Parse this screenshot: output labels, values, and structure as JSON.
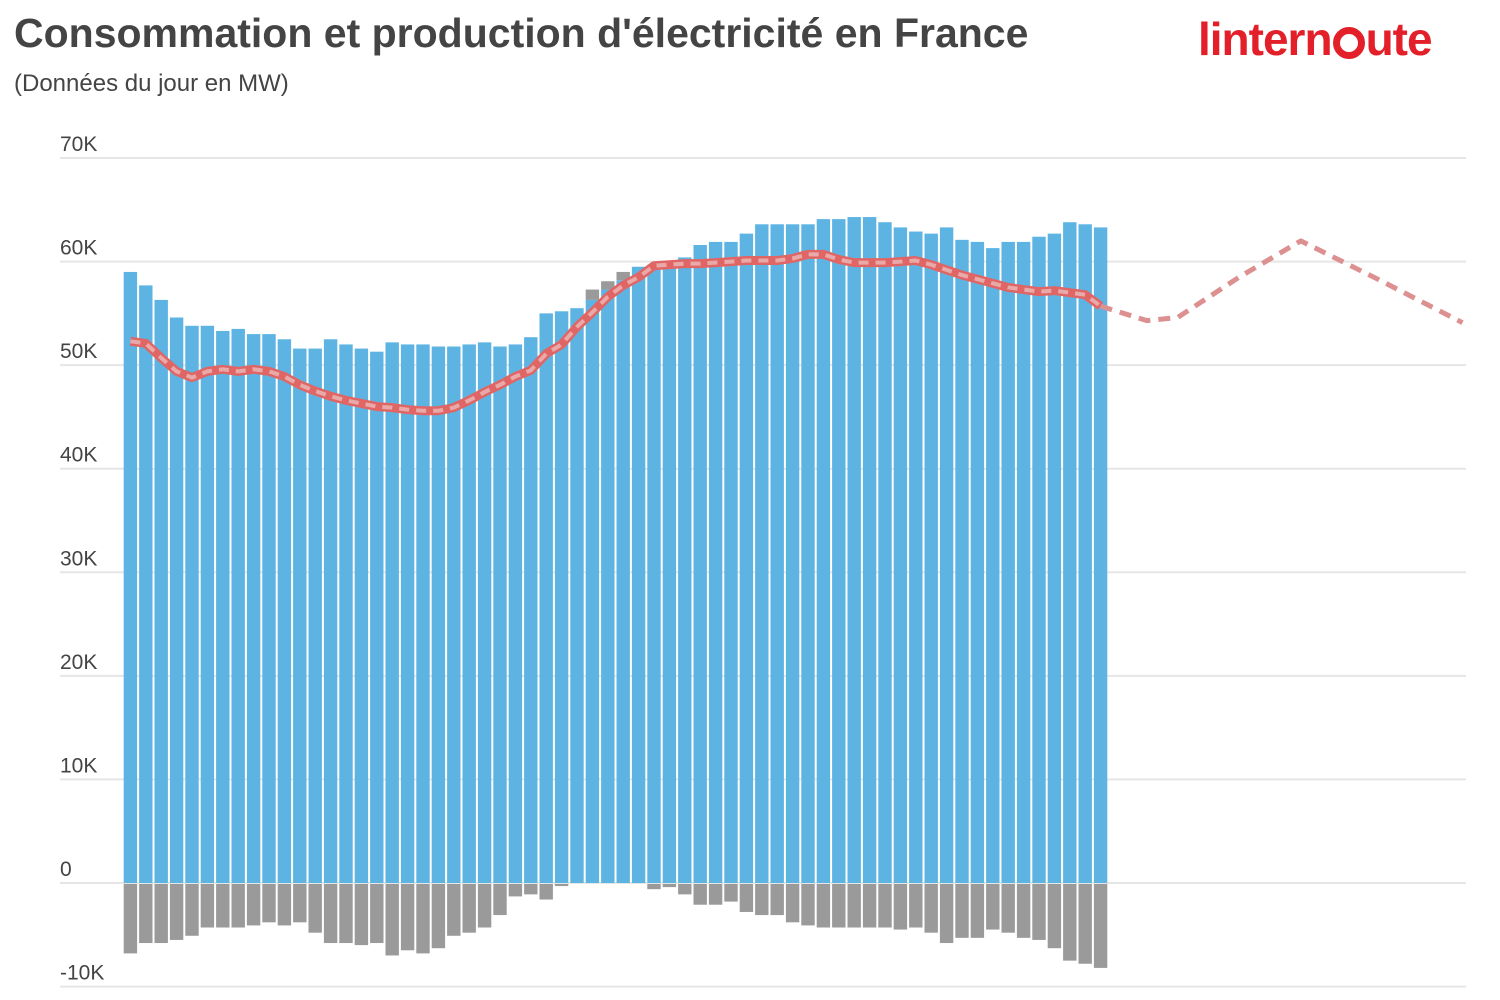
{
  "header": {
    "title": "Consommation et production d'électricité en France",
    "subtitle": "(Données du jour en MW)",
    "logo": "linternaute"
  },
  "colors": {
    "production": "#5db4e3",
    "exchanges": "#9a9a9a",
    "consumption": "#e06666",
    "consumption_dash": "#eaa9a9",
    "forecast": "#dc9090",
    "grid": "#e6e6e6",
    "logo": "#e3202a"
  },
  "chart_data": {
    "type": "bar",
    "title": "Consommation et production d'électricité en France",
    "subtitle": "(Données du jour en MW)",
    "xlabel": "",
    "ylabel": "",
    "ylim": [
      -10000,
      70000
    ],
    "xlim": [
      0.5,
      87.5
    ],
    "grid": true,
    "y_ticks": [
      -10000,
      0,
      10000,
      20000,
      30000,
      40000,
      50000,
      60000,
      70000
    ],
    "y_tick_labels": [
      "-10K",
      "0",
      "10K",
      "20K",
      "30K",
      "40K",
      "50K",
      "60K",
      "70K"
    ],
    "series": [
      {
        "type": "bar",
        "values": [
          59000,
          57700,
          56300,
          54600,
          53800,
          53800,
          53300,
          53500,
          53000,
          53000,
          52500,
          51600,
          51600,
          52500,
          52000,
          51600,
          51300,
          52200,
          52000,
          52000,
          51800,
          51800,
          52000,
          52200,
          51800,
          52000,
          52700,
          55000,
          55200,
          55500,
          56300,
          57300,
          58200,
          59500,
          59700,
          60000,
          60400,
          61600,
          61900,
          61900,
          62700,
          63600,
          63600,
          63600,
          63600,
          64100,
          64100,
          64300,
          64300,
          63800,
          63300,
          62900,
          62700,
          63300,
          62100,
          61900,
          61300,
          61900,
          61900,
          62400,
          62700,
          63800,
          63600,
          63300
        ]
      },
      {
        "type": "bar",
        "values": [
          -6700,
          -5700,
          -5700,
          -5400,
          -5000,
          -4200,
          -4200,
          -4200,
          -4000,
          -3700,
          -4000,
          -3700,
          -4700,
          -5700,
          -5700,
          -5900,
          -5700,
          -6900,
          -6400,
          -6700,
          -6200,
          -5000,
          -4700,
          -4200,
          -3000,
          -1200,
          -1000,
          -1500,
          -200,
          0,
          1000,
          800,
          800,
          0,
          -500,
          -300,
          -1000,
          -2000,
          -2000,
          -1700,
          -2700,
          -3000,
          -3000,
          -3700,
          -4000,
          -4200,
          -4200,
          -4200,
          -4200,
          -4200,
          -4400,
          -4200,
          -4700,
          -5700,
          -5200,
          -5200,
          -4400,
          -4700,
          -5200,
          -5400,
          -6200,
          -7400,
          -7700,
          -8100
        ]
      },
      {
        "type": "line",
        "values": [
          52300,
          52100,
          50700,
          49400,
          48800,
          49400,
          49600,
          49400,
          49600,
          49400,
          48900,
          48100,
          47500,
          47000,
          46600,
          46300,
          46000,
          45900,
          45700,
          45600,
          45600,
          45900,
          46600,
          47400,
          48100,
          48900,
          49500,
          51100,
          52000,
          53700,
          55100,
          56600,
          57700,
          58500,
          59600,
          59700,
          59800,
          59800,
          59900,
          60000,
          60100,
          60100,
          60100,
          60300,
          60700,
          60700,
          60200,
          59900,
          59900,
          59900,
          60000,
          60100,
          59700,
          59200,
          58700,
          58300,
          57900,
          57500,
          57300,
          57100,
          57200,
          57000,
          56800,
          55700
        ]
      },
      {
        "type": "line",
        "style": "dashed",
        "x": [
          64,
          67,
          69,
          73,
          77,
          82,
          87.5
        ],
        "values": [
          55700,
          54300,
          54600,
          58500,
          62000,
          58300,
          54100
        ]
      }
    ]
  }
}
